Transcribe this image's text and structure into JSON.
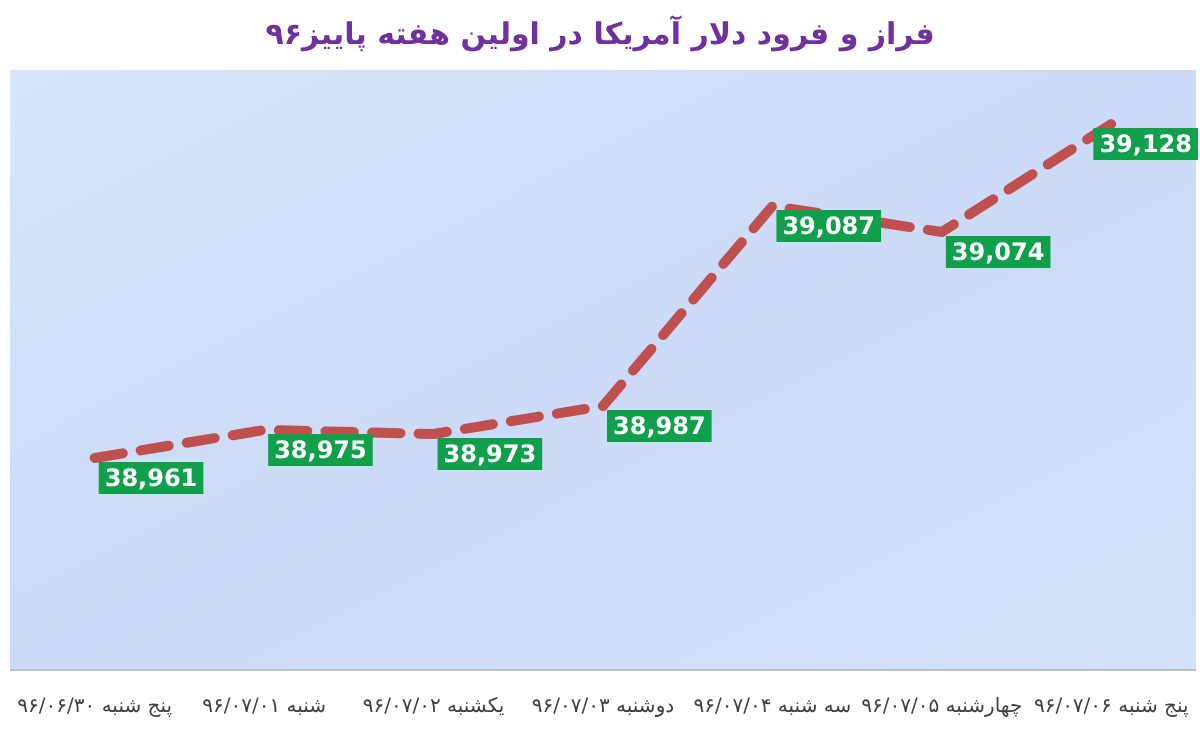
{
  "chart_data": {
    "type": "line",
    "title": "فراز و فرود دلار آمریکا در اولین هفته پاییز۹۶",
    "categories": [
      "پنج شنبه ۹۶/۰۶/۳۰",
      "شنبه ۹۶/۰۷/۰۱",
      "یکشنبه ۹۶/۰۷/۰۲",
      "دوشنبه ۹۶/۰۷/۰۳",
      "سه شنبه ۹۶/۰۷/۰۴",
      "چهارشنبه ۹۶/۰۷/۰۵",
      "پنج شنبه ۹۶/۰۷/۰۶"
    ],
    "series": [
      {
        "color": "#c0504d",
        "values": [
          38961,
          38975,
          38973,
          38987,
          39087,
          39074,
          39128
        ],
        "value_labels": [
          "38,961",
          "38,975",
          "38,973",
          "38,987",
          "39,087",
          "39,074",
          "39,128"
        ]
      }
    ],
    "ylim": [
      38855,
      39155
    ],
    "tick_labels": "x",
    "marker": "none",
    "line_style": "dashed"
  }
}
